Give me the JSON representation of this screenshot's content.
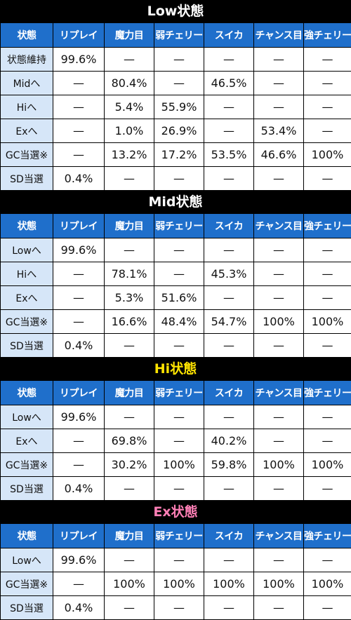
{
  "header_columns": [
    "状態",
    "リプレイ",
    "魔力目",
    "弱チェリー",
    "スイカ",
    "チャンス目",
    "強チェリー"
  ],
  "sections": [
    {
      "title": "Low状態",
      "title_color": "#ffffff",
      "rows": [
        [
          "状態維持",
          "99.6%",
          "—",
          "—",
          "—",
          "—",
          "—"
        ],
        [
          "Midへ",
          "—",
          "80.4%",
          "—",
          "46.5%",
          "—",
          "—"
        ],
        [
          "Hiへ",
          "—",
          "5.4%",
          "55.9%",
          "—",
          "—",
          "—"
        ],
        [
          "Exへ",
          "—",
          "1.0%",
          "26.9%",
          "—",
          "53.4%",
          "—"
        ],
        [
          "GC当選※",
          "—",
          "13.2%",
          "17.2%",
          "53.5%",
          "46.6%",
          "100%"
        ],
        [
          "SD当選",
          "0.4%",
          "—",
          "—",
          "—",
          "—",
          "—"
        ]
      ]
    },
    {
      "title": "Mid状態",
      "title_color": "#ffffff",
      "rows": [
        [
          "Lowへ",
          "99.6%",
          "—",
          "—",
          "—",
          "—",
          "—"
        ],
        [
          "Hiへ",
          "—",
          "78.1%",
          "—",
          "45.3%",
          "—",
          "—"
        ],
        [
          "Exへ",
          "—",
          "5.3%",
          "51.6%",
          "—",
          "—",
          "—"
        ],
        [
          "GC当選※",
          "—",
          "16.6%",
          "48.4%",
          "54.7%",
          "100%",
          "100%"
        ],
        [
          "SD当選",
          "0.4%",
          "—",
          "—",
          "—",
          "—",
          "—"
        ]
      ]
    },
    {
      "title": "Hi状態",
      "title_color": "#ffe400",
      "rows": [
        [
          "Lowへ",
          "99.6%",
          "—",
          "—",
          "—",
          "—",
          "—"
        ],
        [
          "Exへ",
          "—",
          "69.8%",
          "—",
          "40.2%",
          "—",
          "—"
        ],
        [
          "GC当選※",
          "—",
          "30.2%",
          "100%",
          "59.8%",
          "100%",
          "100%"
        ],
        [
          "SD当選",
          "0.4%",
          "—",
          "—",
          "—",
          "—",
          "—"
        ]
      ]
    },
    {
      "title": "Ex状態",
      "title_color": "#ff7fb6",
      "rows": [
        [
          "Lowへ",
          "99.6%",
          "—",
          "—",
          "—",
          "—",
          "—"
        ],
        [
          "GC当選※",
          "—",
          "100%",
          "100%",
          "100%",
          "100%",
          "100%"
        ],
        [
          "SD当選",
          "0.4%",
          "—",
          "—",
          "—",
          "—",
          "—"
        ]
      ]
    }
  ],
  "colors": {
    "header_bg": "#1f6fcb",
    "row_label_bg": "#d6e6f8",
    "cell_bg": "#ffffff",
    "page_bg": "#000000"
  }
}
